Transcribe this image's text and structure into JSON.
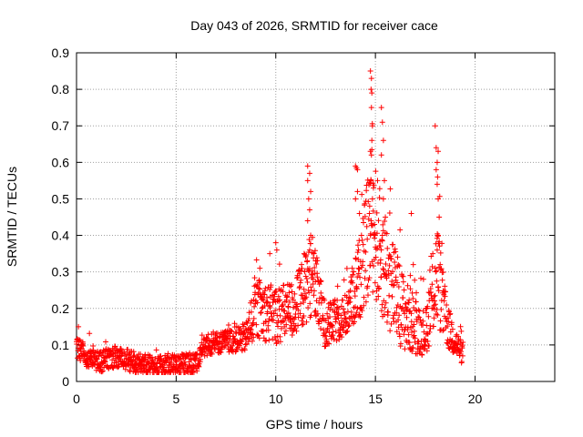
{
  "chart_data": {
    "type": "scatter",
    "title": "Day 043 of 2026, SRMTID for receiver cace",
    "xlabel": "GPS time / hours",
    "ylabel": "SRMTID / TECUs",
    "xlim": [
      0,
      24
    ],
    "ylim": [
      0,
      0.9
    ],
    "x_ticks": [
      0,
      5,
      10,
      15,
      20
    ],
    "y_ticks": [
      0,
      0.1,
      0.2,
      0.3,
      0.4,
      0.5,
      0.6,
      0.7,
      0.8,
      0.9
    ],
    "grid": true,
    "marker": "+",
    "color": "#ff0000",
    "series": [
      {
        "name": "SRMTID",
        "envelope": [
          {
            "x": 0.0,
            "base": 0.09,
            "amp": 0.03
          },
          {
            "x": 1.0,
            "base": 0.05,
            "amp": 0.03
          },
          {
            "x": 2.0,
            "base": 0.07,
            "amp": 0.03
          },
          {
            "x": 3.0,
            "base": 0.05,
            "amp": 0.03
          },
          {
            "x": 4.0,
            "base": 0.04,
            "amp": 0.03
          },
          {
            "x": 5.0,
            "base": 0.045,
            "amp": 0.03
          },
          {
            "x": 6.0,
            "base": 0.05,
            "amp": 0.03
          },
          {
            "x": 6.5,
            "base": 0.1,
            "amp": 0.03
          },
          {
            "x": 7.5,
            "base": 0.11,
            "amp": 0.03
          },
          {
            "x": 8.5,
            "base": 0.12,
            "amp": 0.04
          },
          {
            "x": 9.0,
            "base": 0.2,
            "amp": 0.08
          },
          {
            "x": 10.0,
            "base": 0.18,
            "amp": 0.08
          },
          {
            "x": 11.0,
            "base": 0.2,
            "amp": 0.08
          },
          {
            "x": 11.8,
            "base": 0.3,
            "amp": 0.12
          },
          {
            "x": 12.5,
            "base": 0.15,
            "amp": 0.06
          },
          {
            "x": 13.5,
            "base": 0.18,
            "amp": 0.06
          },
          {
            "x": 14.3,
            "base": 0.3,
            "amp": 0.12
          },
          {
            "x": 14.8,
            "base": 0.45,
            "amp": 0.2
          },
          {
            "x": 15.5,
            "base": 0.3,
            "amp": 0.15
          },
          {
            "x": 16.5,
            "base": 0.18,
            "amp": 0.1
          },
          {
            "x": 17.5,
            "base": 0.13,
            "amp": 0.06
          },
          {
            "x": 18.1,
            "base": 0.3,
            "amp": 0.15
          },
          {
            "x": 18.6,
            "base": 0.15,
            "amp": 0.06
          },
          {
            "x": 19.3,
            "base": 0.08,
            "amp": 0.03
          }
        ],
        "spikes": [
          {
            "x": 11.6,
            "y": 0.59
          },
          {
            "x": 11.7,
            "y": 0.57
          },
          {
            "x": 11.6,
            "y": 0.55
          },
          {
            "x": 11.75,
            "y": 0.52
          },
          {
            "x": 11.65,
            "y": 0.5
          },
          {
            "x": 11.7,
            "y": 0.47
          },
          {
            "x": 11.6,
            "y": 0.44
          },
          {
            "x": 11.75,
            "y": 0.4
          },
          {
            "x": 11.7,
            "y": 0.36
          },
          {
            "x": 14.0,
            "y": 0.59
          },
          {
            "x": 14.05,
            "y": 0.585
          },
          {
            "x": 14.1,
            "y": 0.58
          },
          {
            "x": 14.1,
            "y": 0.52
          },
          {
            "x": 14.0,
            "y": 0.5
          },
          {
            "x": 14.2,
            "y": 0.46
          },
          {
            "x": 14.3,
            "y": 0.4
          },
          {
            "x": 14.15,
            "y": 0.36
          },
          {
            "x": 14.75,
            "y": 0.85
          },
          {
            "x": 14.8,
            "y": 0.83
          },
          {
            "x": 14.78,
            "y": 0.8
          },
          {
            "x": 14.82,
            "y": 0.79
          },
          {
            "x": 14.8,
            "y": 0.75
          },
          {
            "x": 14.85,
            "y": 0.7
          },
          {
            "x": 14.82,
            "y": 0.66
          },
          {
            "x": 14.75,
            "y": 0.63
          },
          {
            "x": 14.8,
            "y": 0.62
          },
          {
            "x": 14.78,
            "y": 0.55
          },
          {
            "x": 14.9,
            "y": 0.53
          },
          {
            "x": 14.85,
            "y": 0.5
          },
          {
            "x": 14.7,
            "y": 0.46
          },
          {
            "x": 14.95,
            "y": 0.43
          },
          {
            "x": 14.75,
            "y": 0.4
          },
          {
            "x": 15.3,
            "y": 0.75
          },
          {
            "x": 15.35,
            "y": 0.71
          },
          {
            "x": 15.4,
            "y": 0.66
          },
          {
            "x": 15.3,
            "y": 0.62
          },
          {
            "x": 15.45,
            "y": 0.55
          },
          {
            "x": 15.4,
            "y": 0.5
          },
          {
            "x": 15.5,
            "y": 0.45
          },
          {
            "x": 15.35,
            "y": 0.4
          },
          {
            "x": 16.8,
            "y": 0.46
          },
          {
            "x": 16.9,
            "y": 0.32
          },
          {
            "x": 16.75,
            "y": 0.29
          },
          {
            "x": 18.0,
            "y": 0.7
          },
          {
            "x": 18.05,
            "y": 0.64
          },
          {
            "x": 18.15,
            "y": 0.63
          },
          {
            "x": 18.1,
            "y": 0.6
          },
          {
            "x": 18.05,
            "y": 0.58
          },
          {
            "x": 18.12,
            "y": 0.56
          },
          {
            "x": 18.1,
            "y": 0.54
          },
          {
            "x": 18.15,
            "y": 0.5
          },
          {
            "x": 18.2,
            "y": 0.45
          },
          {
            "x": 18.15,
            "y": 0.4
          },
          {
            "x": 18.1,
            "y": 0.36
          },
          {
            "x": 18.25,
            "y": 0.32
          },
          {
            "x": 9.7,
            "y": 0.35
          },
          {
            "x": 10.0,
            "y": 0.38
          },
          {
            "x": 10.05,
            "y": 0.36
          },
          {
            "x": 9.2,
            "y": 0.31
          },
          {
            "x": 12.0,
            "y": 0.33
          },
          {
            "x": 11.9,
            "y": 0.35
          }
        ]
      }
    ]
  }
}
